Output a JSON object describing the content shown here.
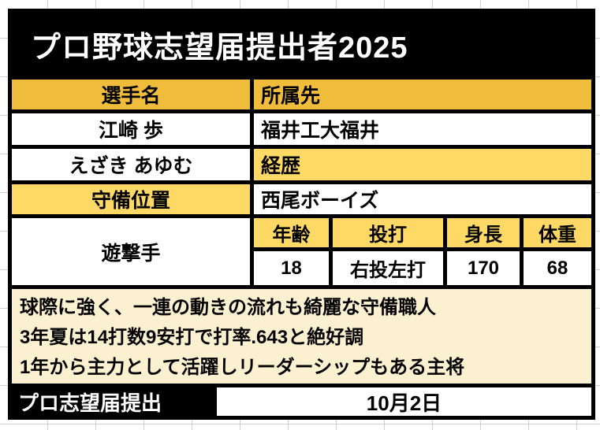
{
  "title": "プロ野球志望届提出者2025",
  "table": {
    "player_name_label": "選手名",
    "affiliation_label": "所属先",
    "player_name": "江崎 歩",
    "affiliation": "福井工大福井",
    "player_kana": "えざき あゆむ",
    "career_label": "経歴",
    "position_label": "守備位置",
    "career": "西尾ボーイズ",
    "position": "遊撃手",
    "stats_headers": [
      "年齢",
      "投打",
      "身長",
      "体重"
    ],
    "stats_values": [
      "18",
      "右投左打",
      "170",
      "68"
    ],
    "notes": [
      "球際に強く、一連の動きの流れも綺麗な守備職人",
      "3年夏は14打数9安打で打率.643と絶好調",
      "1年から主力として活躍しリーダーシップもある主将"
    ],
    "submission_label": "プロ志望届提出",
    "submission_date": "10月2日"
  },
  "colors": {
    "header_gold": "#EFBD3B",
    "light_yellow": "#FFD966",
    "cream_note": "#FBF0CF",
    "frame_black": "#000000",
    "grid_line": "#CFCFCF"
  }
}
